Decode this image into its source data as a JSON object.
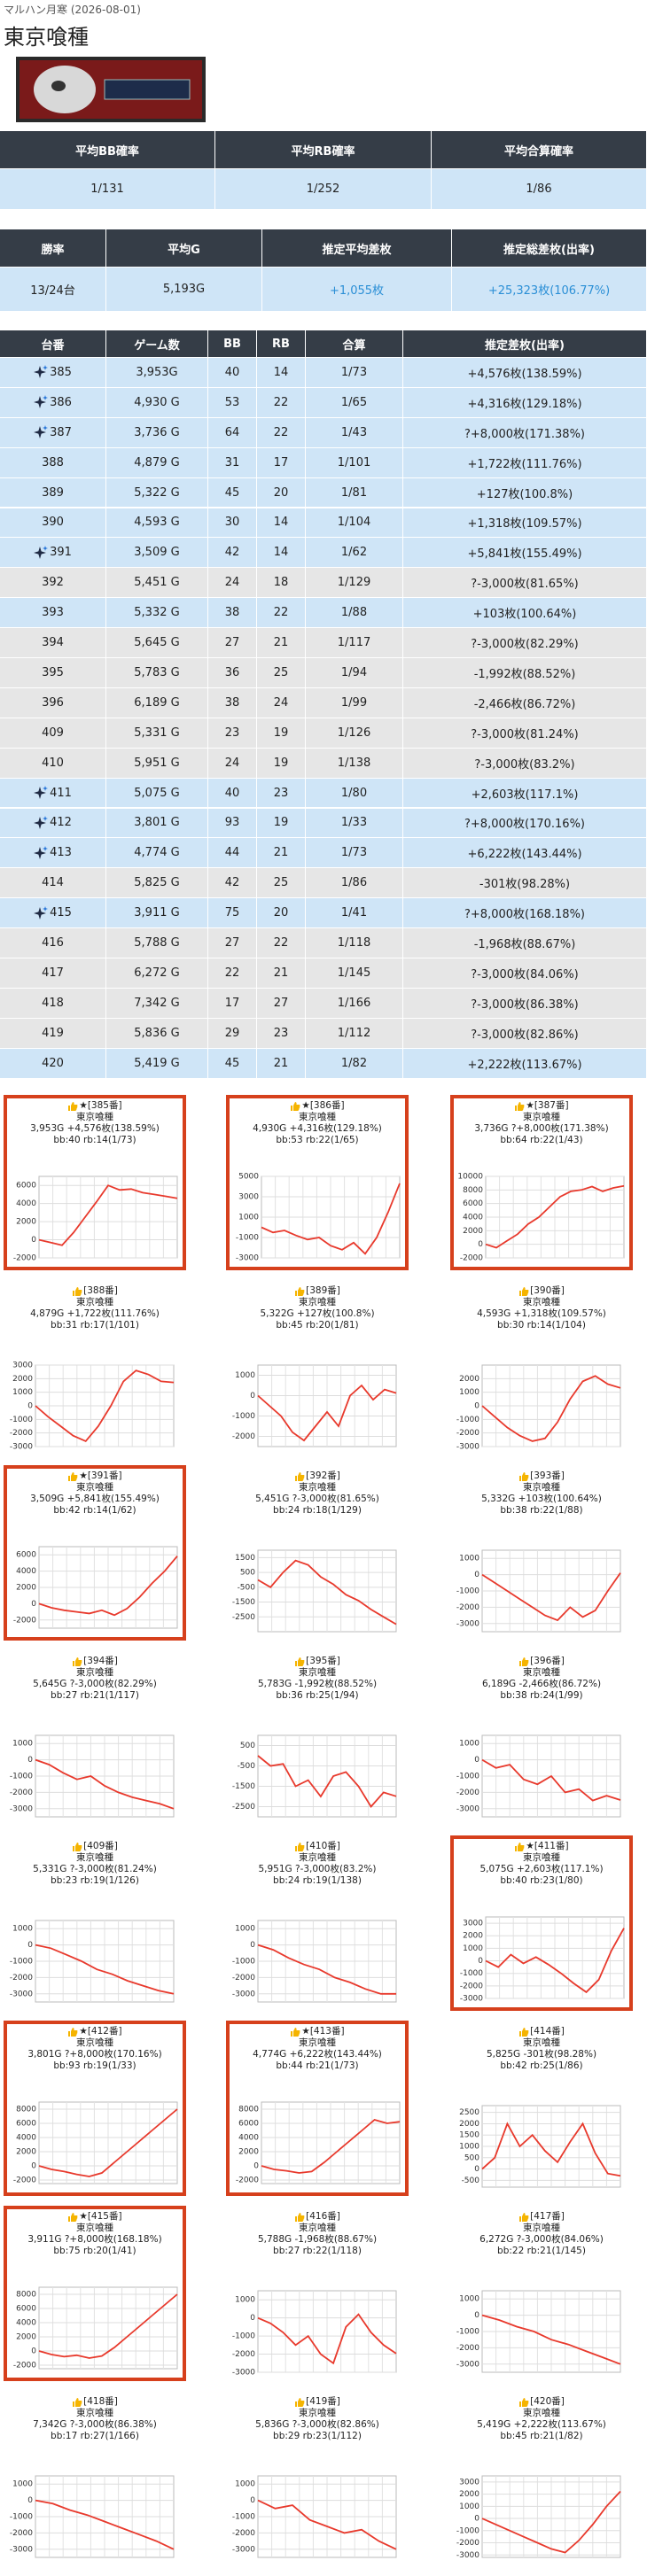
{
  "header": {
    "store": "マルハン月寒 (2026-08-01)",
    "title": "東京喰種"
  },
  "probability_table": {
    "columns": [
      "平均BB確率",
      "平均RB確率",
      "平均合算確率"
    ],
    "rows": [
      [
        "1/131",
        "1/252",
        "1/86"
      ]
    ]
  },
  "summary_table": {
    "columns": [
      "勝率",
      "平均G",
      "推定平均差枚",
      "推定総差枚(出率)"
    ],
    "rows": [
      [
        "13/24台",
        "5,193G",
        "+1,055枚",
        "+25,323枚(106.77%)"
      ]
    ],
    "value_colors": [
      "#222222",
      "#222222",
      "#2b8fd6",
      "#2b8fd6"
    ]
  },
  "machine_table": {
    "columns": [
      "台番",
      "ゲーム数",
      "BB",
      "RB",
      "合算",
      "推定差枚(出率)"
    ],
    "rows": [
      [
        "385",
        "3,953G",
        "40",
        "14",
        "1/73",
        "+4,576枚(138.59%)"
      ],
      [
        "386",
        "4,930 G",
        "53",
        "22",
        "1/65",
        "+4,316枚(129.18%)"
      ],
      [
        "387",
        "3,736 G",
        "64",
        "22",
        "1/43",
        "?+8,000枚(171.38%)"
      ],
      [
        "388",
        "4,879 G",
        "31",
        "17",
        "1/101",
        "+1,722枚(111.76%)"
      ],
      [
        "389",
        "5,322 G",
        "45",
        "20",
        "1/81",
        "+127枚(100.8%)"
      ],
      [
        "390",
        "4,593 G",
        "30",
        "14",
        "1/104",
        "+1,318枚(109.57%)"
      ],
      [
        "391",
        "3,509 G",
        "42",
        "14",
        "1/62",
        "+5,841枚(155.49%)"
      ],
      [
        "392",
        "5,451 G",
        "24",
        "18",
        "1/129",
        "?-3,000枚(81.65%)"
      ],
      [
        "393",
        "5,332 G",
        "38",
        "22",
        "1/88",
        "+103枚(100.64%)"
      ],
      [
        "394",
        "5,645 G",
        "27",
        "21",
        "1/117",
        "?-3,000枚(82.29%)"
      ],
      [
        "395",
        "5,783 G",
        "36",
        "25",
        "1/94",
        "-1,992枚(88.52%)"
      ],
      [
        "396",
        "6,189 G",
        "38",
        "24",
        "1/99",
        "-2,466枚(86.72%)"
      ],
      [
        "409",
        "5,331 G",
        "23",
        "19",
        "1/126",
        "?-3,000枚(81.24%)"
      ],
      [
        "410",
        "5,951 G",
        "24",
        "19",
        "1/138",
        "?-3,000枚(83.2%)"
      ],
      [
        "411",
        "5,075 G",
        "40",
        "23",
        "1/80",
        "+2,603枚(117.1%)"
      ],
      [
        "412",
        "3,801 G",
        "93",
        "19",
        "1/33",
        "?+8,000枚(170.16%)"
      ],
      [
        "413",
        "4,774 G",
        "44",
        "21",
        "1/73",
        "+6,222枚(143.44%)"
      ],
      [
        "414",
        "5,825 G",
        "42",
        "25",
        "1/86",
        "-301枚(98.28%)"
      ],
      [
        "415",
        "3,911 G",
        "75",
        "20",
        "1/41",
        "?+8,000枚(168.18%)"
      ],
      [
        "416",
        "5,788 G",
        "27",
        "22",
        "1/118",
        "-1,968枚(88.67%)"
      ],
      [
        "417",
        "6,272 G",
        "22",
        "21",
        "1/145",
        "?-3,000枚(84.06%)"
      ],
      [
        "418",
        "7,342 G",
        "17",
        "27",
        "1/166",
        "?-3,000枚(86.38%)"
      ],
      [
        "419",
        "5,836 G",
        "29",
        "23",
        "1/112",
        "?-3,000枚(82.86%)"
      ],
      [
        "420",
        "5,419 G",
        "45",
        "21",
        "1/82",
        "+2,222枚(113.67%)"
      ]
    ],
    "featured": [
      true,
      true,
      true,
      false,
      false,
      false,
      true,
      false,
      false,
      false,
      false,
      false,
      false,
      false,
      true,
      true,
      true,
      false,
      true,
      false,
      false,
      false,
      false,
      false
    ],
    "row_colors": [
      "#cfe5f7",
      "#cfe5f7",
      "#cfe5f7",
      "#cfe5f7",
      "#cfe5f7",
      "#cfe5f7",
      "#cfe5f7",
      "#e6e6e6",
      "#cfe5f7",
      "#e6e6e6",
      "#e6e6e6",
      "#e6e6e6",
      "#e6e6e6",
      "#e6e6e6",
      "#cfe5f7",
      "#cfe5f7",
      "#cfe5f7",
      "#e6e6e6",
      "#cfe5f7",
      "#e6e6e6",
      "#e6e6e6",
      "#e6e6e6",
      "#e6e6e6",
      "#cfe5f7"
    ]
  },
  "chart_data": [
    {
      "type": "line",
      "title": "★[385番]",
      "subtitle": "東京喰種",
      "annotations": [
        "3,953G +4,576枚(138.59%)",
        "bb:40 rb:14(1/73)"
      ],
      "highlight": true,
      "color": "#e8392c",
      "grid": true,
      "ylim": [
        -2000,
        7000
      ],
      "yticks": [
        -2000,
        0,
        2000,
        4000,
        6000
      ],
      "values": [
        0,
        -300,
        -600,
        800,
        2500,
        4200,
        6000,
        5500,
        5600,
        5200,
        5000,
        4800,
        4576
      ]
    },
    {
      "type": "line",
      "title": "★[386番]",
      "subtitle": "東京喰種",
      "annotations": [
        "4,930G +4,316枚(129.18%)",
        "bb:53 rb:22(1/65)"
      ],
      "highlight": true,
      "color": "#e8392c",
      "grid": true,
      "ylim": [
        -3000,
        5000
      ],
      "yticks": [
        -3000,
        -1000,
        1000,
        3000,
        5000
      ],
      "values": [
        0,
        -500,
        -300,
        -800,
        -1200,
        -1000,
        -1800,
        -2200,
        -1500,
        -2600,
        -1000,
        1500,
        4316
      ]
    },
    {
      "type": "line",
      "title": "★[387番]",
      "subtitle": "東京喰種",
      "annotations": [
        "3,736G ?+8,000枚(171.38%)",
        "bb:64 rb:22(1/43)"
      ],
      "highlight": true,
      "color": "#e8392c",
      "grid": true,
      "ylim": [
        -2000,
        10000
      ],
      "yticks": [
        -2000,
        0,
        2000,
        4000,
        6000,
        8000,
        10000
      ],
      "values": [
        0,
        -500,
        500,
        1500,
        3000,
        4000,
        5500,
        7000,
        7800,
        8000,
        8500,
        7800,
        8300,
        8600
      ]
    },
    {
      "type": "line",
      "title": "[388番]",
      "subtitle": "東京喰種",
      "annotations": [
        "4,879G +1,722枚(111.76%)",
        "bb:31 rb:17(1/101)"
      ],
      "highlight": false,
      "color": "#e8392c",
      "grid": true,
      "ylim": [
        -3000,
        3000
      ],
      "yticks": [
        -3000,
        -2000,
        -1000,
        0,
        1000,
        2000,
        3000
      ],
      "values": [
        0,
        -800,
        -1500,
        -2200,
        -2600,
        -1500,
        0,
        1800,
        2600,
        2300,
        1800,
        1722
      ]
    },
    {
      "type": "line",
      "title": "[389番]",
      "subtitle": "東京喰種",
      "annotations": [
        "5,322G +127枚(100.8%)",
        "bb:45 rb:20(1/81)"
      ],
      "highlight": false,
      "color": "#e8392c",
      "grid": true,
      "ylim": [
        -2500,
        1500
      ],
      "yticks": [
        -2000,
        -1000,
        0,
        1000
      ],
      "values": [
        0,
        -500,
        -1000,
        -1800,
        -2200,
        -1500,
        -800,
        -1500,
        0,
        500,
        -200,
        300,
        127
      ]
    },
    {
      "type": "line",
      "title": "[390番]",
      "subtitle": "東京喰種",
      "annotations": [
        "4,593G +1,318枚(109.57%)",
        "bb:30 rb:14(1/104)"
      ],
      "highlight": false,
      "color": "#e8392c",
      "grid": true,
      "ylim": [
        -3000,
        3000
      ],
      "yticks": [
        -3000,
        -2000,
        -1000,
        0,
        1000,
        2000
      ],
      "values": [
        0,
        -800,
        -1600,
        -2200,
        -2600,
        -2400,
        -1200,
        500,
        1800,
        2200,
        1600,
        1318
      ]
    },
    {
      "type": "line",
      "title": "★[391番]",
      "subtitle": "東京喰種",
      "annotations": [
        "3,509G +5,841枚(155.49%)",
        "bb:42 rb:14(1/62)"
      ],
      "highlight": true,
      "color": "#e8392c",
      "grid": true,
      "ylim": [
        -3000,
        7000
      ],
      "yticks": [
        -2000,
        0,
        2000,
        4000,
        6000
      ],
      "values": [
        0,
        -500,
        -800,
        -1000,
        -1200,
        -800,
        -1400,
        -600,
        800,
        2500,
        4000,
        5841
      ]
    },
    {
      "type": "line",
      "title": "[392番]",
      "subtitle": "東京喰種",
      "annotations": [
        "5,451G ?-3,000枚(81.65%)",
        "bb:24 rb:18(1/129)"
      ],
      "highlight": false,
      "color": "#e8392c",
      "grid": true,
      "ylim": [
        -3500,
        2000
      ],
      "yticks": [
        -2500,
        -1500,
        -500,
        500,
        1500
      ],
      "values": [
        0,
        -500,
        500,
        1300,
        1000,
        200,
        -300,
        -1000,
        -1400,
        -2000,
        -2500,
        -3000
      ]
    },
    {
      "type": "line",
      "title": "[393番]",
      "subtitle": "東京喰種",
      "annotations": [
        "5,332G +103枚(100.64%)",
        "bb:38 rb:22(1/88)"
      ],
      "highlight": false,
      "color": "#e8392c",
      "grid": true,
      "ylim": [
        -3500,
        1500
      ],
      "yticks": [
        -3000,
        -2000,
        -1000,
        0,
        1000
      ],
      "values": [
        0,
        -500,
        -1000,
        -1500,
        -2000,
        -2500,
        -2800,
        -2000,
        -2600,
        -2200,
        -1000,
        103
      ]
    },
    {
      "type": "line",
      "title": "[394番]",
      "subtitle": "東京喰種",
      "annotations": [
        "5,645G ?-3,000枚(82.29%)",
        "bb:27 rb:21(1/117)"
      ],
      "highlight": false,
      "color": "#e8392c",
      "grid": true,
      "ylim": [
        -3500,
        1500
      ],
      "yticks": [
        -3000,
        -2000,
        -1000,
        0,
        1000
      ],
      "values": [
        0,
        -300,
        -800,
        -1200,
        -1000,
        -1600,
        -2000,
        -2300,
        -2500,
        -2700,
        -3000
      ]
    },
    {
      "type": "line",
      "title": "[395番]",
      "subtitle": "東京喰種",
      "annotations": [
        "5,783G -1,992枚(88.52%)",
        "bb:36 rb:25(1/94)"
      ],
      "highlight": false,
      "color": "#e8392c",
      "grid": true,
      "ylim": [
        -3000,
        1000
      ],
      "yticks": [
        -2500,
        -1500,
        -500,
        500
      ],
      "values": [
        0,
        -500,
        -400,
        -1500,
        -1200,
        -2000,
        -1000,
        -800,
        -1500,
        -2500,
        -1800,
        -1992
      ]
    },
    {
      "type": "line",
      "title": "[396番]",
      "subtitle": "東京喰種",
      "annotations": [
        "6,189G -2,466枚(86.72%)",
        "bb:38 rb:24(1/99)"
      ],
      "highlight": false,
      "color": "#e8392c",
      "grid": true,
      "ylim": [
        -3500,
        1500
      ],
      "yticks": [
        -3000,
        -2000,
        -1000,
        0,
        1000
      ],
      "values": [
        0,
        -500,
        -300,
        -1200,
        -1500,
        -1000,
        -2000,
        -1800,
        -2500,
        -2200,
        -2466
      ]
    },
    {
      "type": "line",
      "title": "[409番]",
      "subtitle": "東京喰種",
      "annotations": [
        "5,331G ?-3,000枚(81.24%)",
        "bb:23 rb:19(1/126)"
      ],
      "highlight": false,
      "color": "#e8392c",
      "grid": true,
      "ylim": [
        -3500,
        1500
      ],
      "yticks": [
        -3000,
        -2000,
        -1000,
        0,
        1000
      ],
      "values": [
        0,
        -200,
        -600,
        -1000,
        -1500,
        -1800,
        -2200,
        -2500,
        -2800,
        -3000
      ]
    },
    {
      "type": "line",
      "title": "[410番]",
      "subtitle": "東京喰種",
      "annotations": [
        "5,951G ?-3,000枚(83.2%)",
        "bb:24 rb:19(1/138)"
      ],
      "highlight": false,
      "color": "#e8392c",
      "grid": true,
      "ylim": [
        -3500,
        1500
      ],
      "yticks": [
        -3000,
        -2000,
        -1000,
        0,
        1000
      ],
      "values": [
        0,
        -300,
        -800,
        -1200,
        -1500,
        -2000,
        -2300,
        -2700,
        -3000,
        -3000
      ]
    },
    {
      "type": "line",
      "title": "★[411番]",
      "subtitle": "東京喰種",
      "annotations": [
        "5,075G +2,603枚(117.1%)",
        "bb:40 rb:23(1/80)"
      ],
      "highlight": true,
      "color": "#e8392c",
      "grid": true,
      "ylim": [
        -3000,
        3500
      ],
      "yticks": [
        -3000,
        -2000,
        -1000,
        0,
        1000,
        2000,
        3000
      ],
      "values": [
        0,
        -500,
        500,
        -200,
        300,
        -300,
        -1000,
        -1800,
        -2500,
        -1500,
        800,
        2603
      ]
    },
    {
      "type": "line",
      "title": "★[412番]",
      "subtitle": "東京喰種",
      "annotations": [
        "3,801G ?+8,000枚(170.16%)",
        "bb:93 rb:19(1/33)"
      ],
      "highlight": true,
      "color": "#e8392c",
      "grid": true,
      "ylim": [
        -2500,
        9000
      ],
      "yticks": [
        -2000,
        0,
        2000,
        4000,
        6000,
        8000
      ],
      "values": [
        0,
        -500,
        -800,
        -1200,
        -1500,
        -1000,
        500,
        2000,
        3500,
        5000,
        6500,
        8000
      ]
    },
    {
      "type": "line",
      "title": "★[413番]",
      "subtitle": "東京喰種",
      "annotations": [
        "4,774G +6,222枚(143.44%)",
        "bb:44 rb:21(1/73)"
      ],
      "highlight": true,
      "color": "#e8392c",
      "grid": true,
      "ylim": [
        -2500,
        9000
      ],
      "yticks": [
        -2000,
        0,
        2000,
        4000,
        6000,
        8000
      ],
      "values": [
        0,
        -500,
        -700,
        -1000,
        -800,
        500,
        2000,
        3500,
        5000,
        6500,
        6000,
        6222
      ]
    },
    {
      "type": "line",
      "title": "[414番]",
      "subtitle": "東京喰種",
      "annotations": [
        "5,825G -301枚(98.28%)",
        "bb:42 rb:25(1/86)"
      ],
      "highlight": false,
      "color": "#e8392c",
      "grid": true,
      "ylim": [
        -800,
        2800
      ],
      "yticks": [
        -500,
        0,
        500,
        1000,
        1500,
        2000,
        2500
      ],
      "values": [
        0,
        500,
        2000,
        1000,
        1500,
        800,
        300,
        1200,
        2000,
        700,
        -200,
        -301
      ]
    },
    {
      "type": "line",
      "title": "★[415番]",
      "subtitle": "東京喰種",
      "annotations": [
        "3,911G ?+8,000枚(168.18%)",
        "bb:75 rb:20(1/41)"
      ],
      "highlight": true,
      "color": "#e8392c",
      "grid": true,
      "ylim": [
        -2500,
        9000
      ],
      "yticks": [
        -2000,
        0,
        2000,
        4000,
        6000,
        8000
      ],
      "values": [
        0,
        -500,
        -800,
        -600,
        -1000,
        -700,
        500,
        2000,
        3500,
        5000,
        6500,
        8000
      ]
    },
    {
      "type": "line",
      "title": "[416番]",
      "subtitle": "東京喰種",
      "annotations": [
        "5,788G -1,968枚(88.67%)",
        "bb:27 rb:22(1/118)"
      ],
      "highlight": false,
      "color": "#e8392c",
      "grid": true,
      "ylim": [
        -3000,
        1500
      ],
      "yticks": [
        -3000,
        -2000,
        -1000,
        0,
        1000
      ],
      "values": [
        0,
        -300,
        -800,
        -1500,
        -1000,
        -2000,
        -2500,
        -500,
        200,
        -800,
        -1500,
        -1968
      ]
    },
    {
      "type": "line",
      "title": "[417番]",
      "subtitle": "東京喰種",
      "annotations": [
        "6,272G ?-3,000枚(84.06%)",
        "bb:22 rb:21(1/145)"
      ],
      "highlight": false,
      "color": "#e8392c",
      "grid": true,
      "ylim": [
        -3500,
        1500
      ],
      "yticks": [
        -3000,
        -2000,
        -1000,
        0,
        1000
      ],
      "values": [
        0,
        -300,
        -700,
        -1000,
        -1500,
        -1800,
        -2200,
        -2600,
        -3000
      ]
    },
    {
      "type": "line",
      "title": "[418番]",
      "subtitle": "東京喰種",
      "annotations": [
        "7,342G ?-3,000枚(86.38%)",
        "bb:17 rb:27(1/166)"
      ],
      "highlight": false,
      "color": "#e8392c",
      "grid": true,
      "ylim": [
        -3500,
        1500
      ],
      "yticks": [
        -3000,
        -2000,
        -1000,
        0,
        1000
      ],
      "values": [
        0,
        -200,
        -600,
        -900,
        -1300,
        -1700,
        -2100,
        -2500,
        -3000
      ]
    },
    {
      "type": "line",
      "title": "[419番]",
      "subtitle": "東京喰種",
      "annotations": [
        "5,836G ?-3,000枚(82.86%)",
        "bb:29 rb:23(1/112)"
      ],
      "highlight": false,
      "color": "#e8392c",
      "grid": true,
      "ylim": [
        -3500,
        1500
      ],
      "yticks": [
        -3000,
        -2000,
        -1000,
        0,
        1000
      ],
      "values": [
        0,
        -500,
        -300,
        -1200,
        -1600,
        -2000,
        -1800,
        -2500,
        -3000
      ]
    },
    {
      "type": "line",
      "title": "[420番]",
      "subtitle": "東京喰種",
      "annotations": [
        "5,419G +2,222枚(113.67%)",
        "bb:45 rb:21(1/82)"
      ],
      "highlight": false,
      "color": "#e8392c",
      "grid": true,
      "ylim": [
        -3200,
        3500
      ],
      "yticks": [
        -3000,
        -2000,
        -1000,
        0,
        1000,
        2000,
        3000
      ],
      "values": [
        0,
        -500,
        -1000,
        -1500,
        -2000,
        -2500,
        -2800,
        -1800,
        -500,
        1000,
        2222
      ]
    }
  ]
}
